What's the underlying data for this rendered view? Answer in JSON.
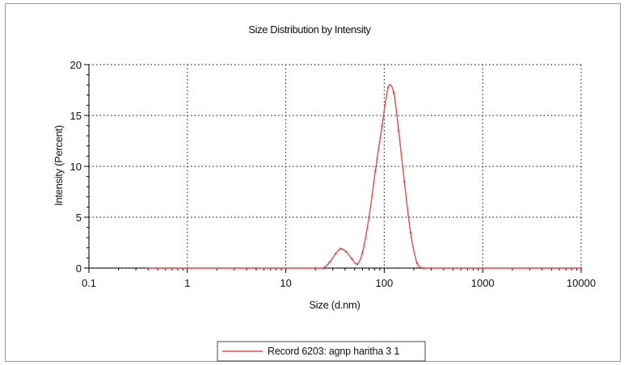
{
  "chart_data": {
    "type": "line",
    "title": "Size Distribution by Intensity",
    "xlabel": "Size (d.nm)",
    "ylabel": "Intensity (Percent)",
    "x_scale": "log",
    "xlim": [
      0.1,
      10000
    ],
    "ylim": [
      0,
      20
    ],
    "x_ticks": [
      0.1,
      1,
      10,
      100,
      1000,
      10000
    ],
    "x_tick_labels": [
      "0.1",
      "1",
      "10",
      "100",
      "1000",
      "10000"
    ],
    "y_ticks": [
      0,
      5,
      10,
      15,
      20
    ],
    "y_tick_labels": [
      "0",
      "5",
      "10",
      "15",
      "20"
    ],
    "grid": true,
    "grid_style": "dotted",
    "legend_position": "bottom-center",
    "series": [
      {
        "name": "Record 6203: agnp haritha 3 1",
        "color": "#f04848",
        "x": [
          0.4,
          1,
          5,
          20,
          24,
          28,
          32,
          36,
          41,
          47,
          53,
          60,
          70,
          81,
          95,
          110,
          125,
          140,
          160,
          185,
          215,
          250,
          300,
          1000,
          10000
        ],
        "y": [
          0,
          0,
          0,
          0,
          0,
          0.6,
          1.4,
          1.9,
          1.6,
          0.9,
          0.4,
          1.5,
          5.0,
          9.5,
          14.0,
          17.8,
          17.2,
          13.5,
          8.5,
          3.5,
          0.5,
          0,
          0,
          0,
          0
        ]
      }
    ]
  }
}
